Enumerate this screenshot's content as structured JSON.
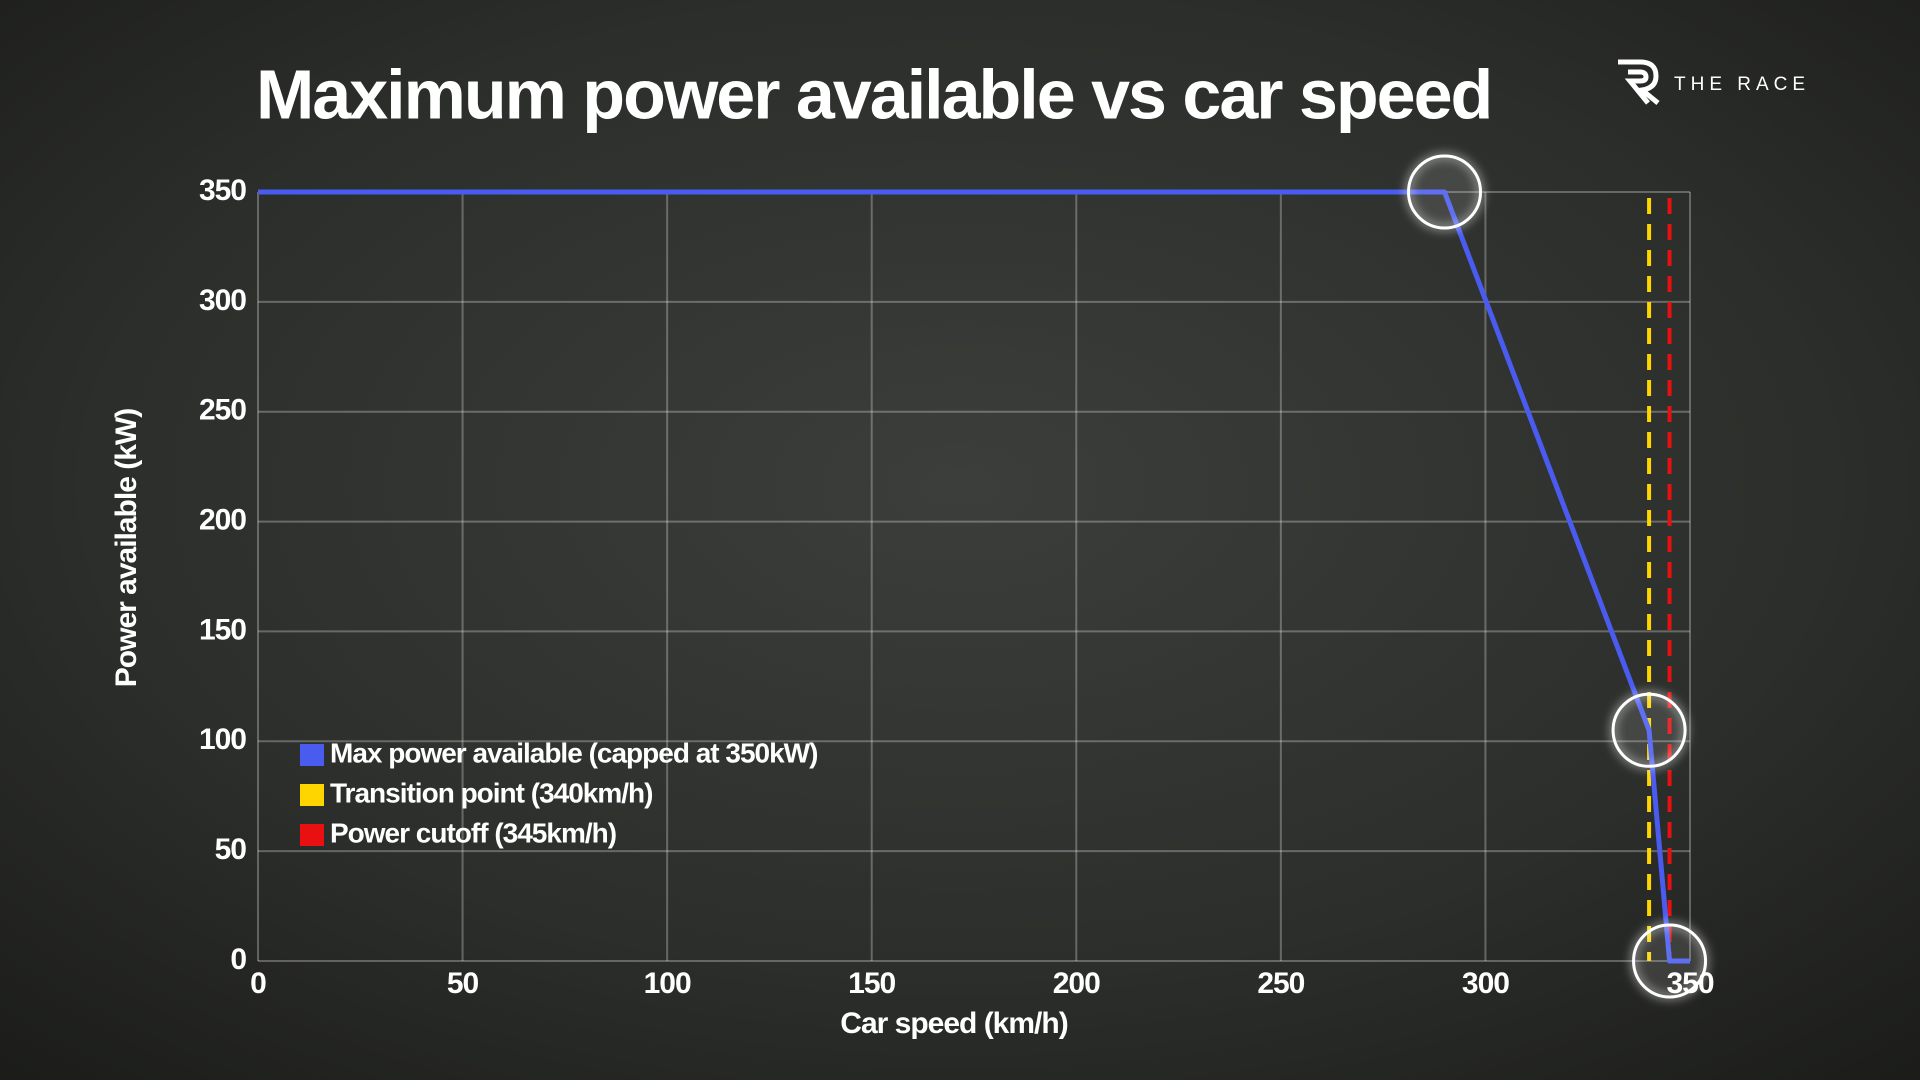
{
  "logo": "THE RACE",
  "chart_data": {
    "type": "line",
    "title": "Maximum power available vs car speed",
    "x_label": "Car speed (km/h)",
    "y_label": "Power available (kW)",
    "x": [
      0,
      290,
      340,
      345,
      350
    ],
    "series": [
      {
        "name": "Max power available (capped at 350kW)",
        "color": "#4a5cf0",
        "values": [
          350,
          350,
          105,
          0,
          0
        ]
      }
    ],
    "vlines": [
      {
        "name": "Transition point (340km/h)",
        "color": "#ffd500",
        "x": 340
      },
      {
        "name": "Power cutoff (345km/h)",
        "color": "#e81010",
        "x": 345
      }
    ],
    "highlight_indices": [
      1,
      2,
      3
    ],
    "xlim": [
      0,
      350
    ],
    "xticks": [
      0,
      50,
      100,
      150,
      200,
      250,
      300,
      350
    ],
    "ylim": [
      0,
      350
    ],
    "yticks": [
      0,
      50,
      100,
      150,
      200,
      250,
      300,
      350
    ],
    "grid": true
  }
}
